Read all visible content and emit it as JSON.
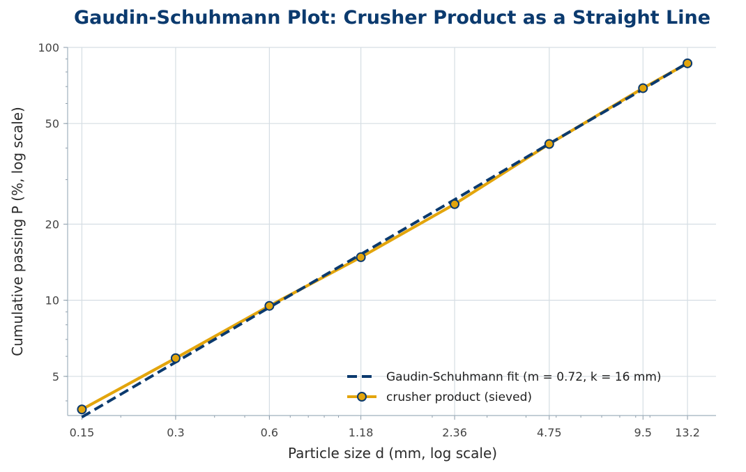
{
  "chart_data": {
    "type": "line",
    "title": "Gaudin-Schuhmann Plot: Crusher Product as a Straight Line",
    "xlabel": "Particle size  d (mm, log scale)",
    "ylabel": "Cumulative passing  P (%, log scale)",
    "x_scale": "log",
    "y_scale": "log",
    "xlim": [
      0.135,
      16.3
    ],
    "ylim": [
      3.5,
      100
    ],
    "x_ticks": [
      0.15,
      0.3,
      0.6,
      1.18,
      2.36,
      4.75,
      9.5,
      13.2
    ],
    "x_tick_labels": [
      "0.15",
      "0.3",
      "0.6",
      "1.18",
      "2.36",
      "4.75",
      "9.5",
      "13.2"
    ],
    "y_ticks": [
      5,
      10,
      20,
      50,
      100
    ],
    "y_tick_labels": [
      "5",
      "10",
      "20",
      "50",
      "100"
    ],
    "grid": true,
    "legend_position": "bottom-right",
    "series": [
      {
        "name": "Gaudin-Schuhmann fit (m = 0.72, k = 16 mm)",
        "style": "dashed",
        "color": "#0b3a6e",
        "markers": false,
        "x": [
          0.15,
          0.3,
          0.6,
          1.18,
          2.36,
          4.75,
          9.5,
          13.2
        ],
        "y": [
          3.45,
          5.69,
          9.37,
          15.2,
          25.0,
          41.6,
          68.3,
          86.8
        ]
      },
      {
        "name": "crusher product (sieved)",
        "style": "solid",
        "color": "#e3a50c",
        "markers": true,
        "marker_edge_color": "#0b3a6e",
        "x": [
          0.15,
          0.3,
          0.6,
          1.18,
          2.36,
          4.75,
          9.5,
          13.2
        ],
        "y": [
          3.7,
          5.9,
          9.5,
          14.8,
          24.0,
          41.5,
          69.0,
          86.5
        ]
      }
    ]
  }
}
